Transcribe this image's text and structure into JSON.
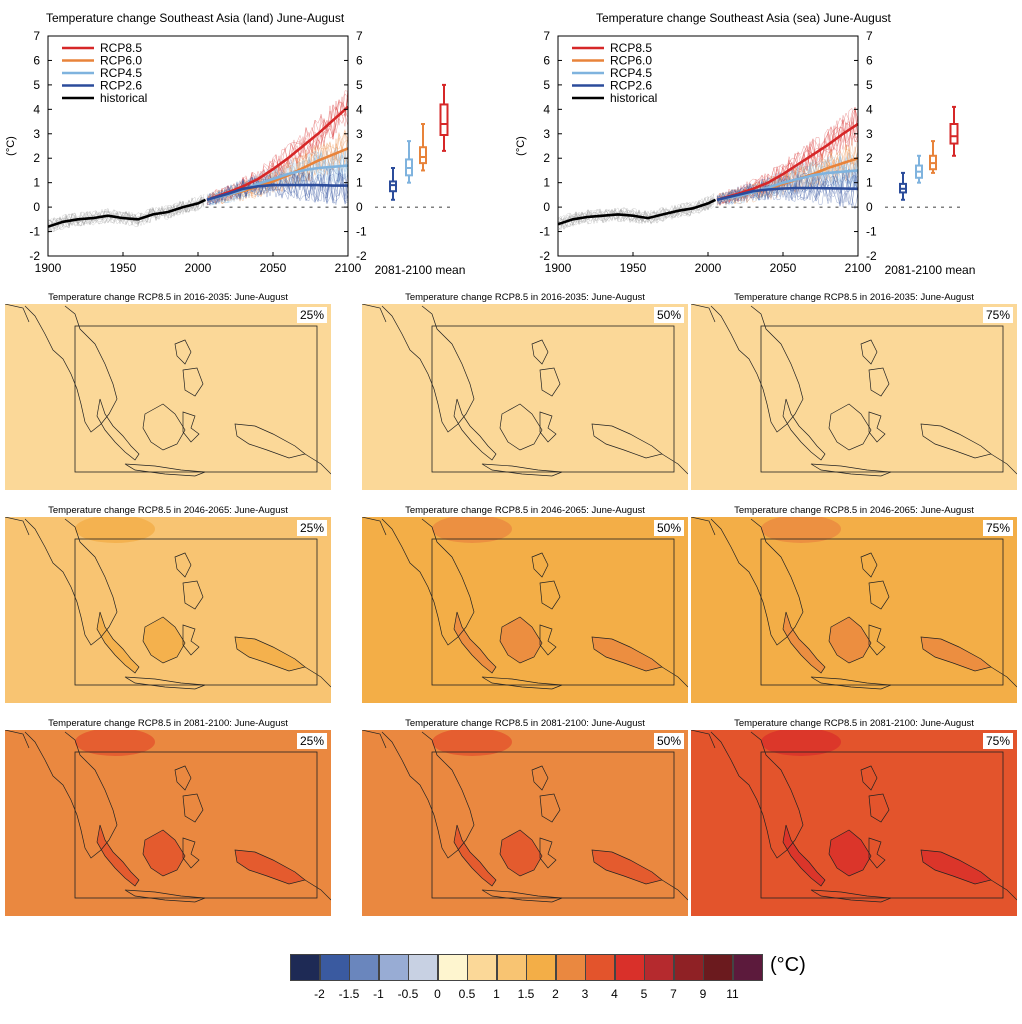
{
  "chart_data": [
    {
      "type": "line",
      "title": "Temperature change Southeast Asia (land) June-August",
      "ylabel": "(°C)",
      "xlim": [
        1900,
        2100
      ],
      "ylim": [
        -2,
        7
      ],
      "x_ticks": [
        1900,
        1950,
        2000,
        2050,
        2100
      ],
      "y_ticks": [
        -2,
        -1,
        0,
        1,
        2,
        3,
        4,
        5,
        6,
        7
      ],
      "legend": "top-left",
      "series": [
        {
          "name": "RCP8.5",
          "color": "#d62728",
          "x": [
            2006,
            2020,
            2030,
            2040,
            2050,
            2060,
            2070,
            2080,
            2090,
            2100
          ],
          "values": [
            0.3,
            0.6,
            0.85,
            1.15,
            1.55,
            2.0,
            2.5,
            3.0,
            3.55,
            4.1
          ]
        },
        {
          "name": "RCP6.0",
          "color": "#e8833a",
          "x": [
            2006,
            2020,
            2030,
            2040,
            2050,
            2060,
            2070,
            2080,
            2090,
            2100
          ],
          "values": [
            0.3,
            0.5,
            0.65,
            0.85,
            1.05,
            1.3,
            1.6,
            1.9,
            2.15,
            2.4
          ]
        },
        {
          "name": "RCP4.5",
          "color": "#7fb3de",
          "x": [
            2006,
            2020,
            2030,
            2040,
            2050,
            2060,
            2070,
            2080,
            2090,
            2100
          ],
          "values": [
            0.3,
            0.5,
            0.7,
            0.95,
            1.15,
            1.35,
            1.5,
            1.6,
            1.65,
            1.7
          ]
        },
        {
          "name": "RCP2.6",
          "color": "#2b4c9b",
          "x": [
            2006,
            2020,
            2030,
            2040,
            2050,
            2060,
            2070,
            2080,
            2090,
            2100
          ],
          "values": [
            0.3,
            0.55,
            0.75,
            0.85,
            0.9,
            0.9,
            0.9,
            0.9,
            0.88,
            0.88
          ]
        },
        {
          "name": "historical",
          "color": "#000000",
          "x": [
            1900,
            1910,
            1920,
            1930,
            1940,
            1950,
            1960,
            1970,
            1980,
            1990,
            2000,
            2005
          ],
          "values": [
            -0.8,
            -0.6,
            -0.5,
            -0.45,
            -0.35,
            -0.45,
            -0.5,
            -0.3,
            -0.2,
            0.0,
            0.15,
            0.3
          ]
        }
      ],
      "box_label": "2081-2100 mean",
      "boxes": [
        {
          "name": "RCP2.6",
          "color": "#2b4c9b",
          "min": 0.3,
          "q1": 0.65,
          "median": 0.9,
          "q3": 1.05,
          "max": 1.6
        },
        {
          "name": "RCP4.5",
          "color": "#7fb3de",
          "min": 1.0,
          "q1": 1.3,
          "median": 1.6,
          "q3": 1.95,
          "max": 2.7
        },
        {
          "name": "RCP6.0",
          "color": "#e8833a",
          "min": 1.5,
          "q1": 1.8,
          "median": 2.05,
          "q3": 2.45,
          "max": 3.4
        },
        {
          "name": "RCP8.5",
          "color": "#d62728",
          "min": 2.3,
          "q1": 2.95,
          "median": 3.4,
          "q3": 4.2,
          "max": 5.0
        }
      ]
    },
    {
      "type": "line",
      "title": "Temperature change Southeast Asia (sea) June-August",
      "ylabel": "(°C)",
      "xlim": [
        1900,
        2100
      ],
      "ylim": [
        -2,
        7
      ],
      "x_ticks": [
        1900,
        1950,
        2000,
        2050,
        2100
      ],
      "y_ticks": [
        -2,
        -1,
        0,
        1,
        2,
        3,
        4,
        5,
        6,
        7
      ],
      "legend": "top-left",
      "series": [
        {
          "name": "RCP8.5",
          "color": "#d62728",
          "x": [
            2006,
            2020,
            2030,
            2040,
            2050,
            2060,
            2070,
            2080,
            2090,
            2100
          ],
          "values": [
            0.3,
            0.55,
            0.75,
            1.0,
            1.35,
            1.75,
            2.15,
            2.55,
            3.0,
            3.4
          ]
        },
        {
          "name": "RCP6.0",
          "color": "#e8833a",
          "x": [
            2006,
            2020,
            2030,
            2040,
            2050,
            2060,
            2070,
            2080,
            2090,
            2100
          ],
          "values": [
            0.3,
            0.45,
            0.6,
            0.75,
            0.95,
            1.15,
            1.35,
            1.6,
            1.8,
            2.0
          ]
        },
        {
          "name": "RCP4.5",
          "color": "#7fb3de",
          "x": [
            2006,
            2020,
            2030,
            2040,
            2050,
            2060,
            2070,
            2080,
            2090,
            2100
          ],
          "values": [
            0.3,
            0.45,
            0.6,
            0.8,
            1.0,
            1.15,
            1.3,
            1.4,
            1.45,
            1.5
          ]
        },
        {
          "name": "RCP2.6",
          "color": "#2b4c9b",
          "x": [
            2006,
            2020,
            2030,
            2040,
            2050,
            2060,
            2070,
            2080,
            2090,
            2100
          ],
          "values": [
            0.3,
            0.5,
            0.65,
            0.72,
            0.76,
            0.78,
            0.78,
            0.77,
            0.76,
            0.75
          ]
        },
        {
          "name": "historical",
          "color": "#000000",
          "x": [
            1900,
            1910,
            1920,
            1930,
            1940,
            1950,
            1960,
            1970,
            1980,
            1990,
            2000,
            2005
          ],
          "values": [
            -0.7,
            -0.5,
            -0.4,
            -0.35,
            -0.3,
            -0.35,
            -0.45,
            -0.3,
            -0.15,
            -0.05,
            0.15,
            0.3
          ]
        }
      ],
      "box_label": "2081-2100 mean",
      "boxes": [
        {
          "name": "RCP2.6",
          "color": "#2b4c9b",
          "min": 0.3,
          "q1": 0.6,
          "median": 0.75,
          "q3": 0.95,
          "max": 1.4
        },
        {
          "name": "RCP4.5",
          "color": "#7fb3de",
          "min": 1.0,
          "q1": 1.2,
          "median": 1.45,
          "q3": 1.7,
          "max": 2.1
        },
        {
          "name": "RCP6.0",
          "color": "#e8833a",
          "min": 1.4,
          "q1": 1.55,
          "median": 1.8,
          "q3": 2.1,
          "max": 2.7
        },
        {
          "name": "RCP8.5",
          "color": "#d62728",
          "min": 2.1,
          "q1": 2.6,
          "median": 2.9,
          "q3": 3.4,
          "max": 4.1
        }
      ]
    },
    {
      "type": "heatmap",
      "maps": [
        {
          "title": "Temperature change RCP8.5 in 2016-2035: June-August",
          "percentile": "25%",
          "fill": "#fbd898"
        },
        {
          "title": "Temperature change RCP8.5 in 2016-2035: June-August",
          "percentile": "50%",
          "fill": "#fbd898"
        },
        {
          "title": "Temperature change RCP8.5 in 2016-2035: June-August",
          "percentile": "75%",
          "fill": "#fbd898"
        },
        {
          "title": "Temperature change RCP8.5 in 2046-2065: June-August",
          "percentile": "25%",
          "fill": "#f8c472"
        },
        {
          "title": "Temperature change RCP8.5 in 2046-2065: June-August",
          "percentile": "50%",
          "fill": "#f3ae47"
        },
        {
          "title": "Temperature change RCP8.5 in 2046-2065: June-August",
          "percentile": "75%",
          "fill": "#f3ae47"
        },
        {
          "title": "Temperature change RCP8.5 in 2081-2100: June-August",
          "percentile": "25%",
          "fill": "#ea8840"
        },
        {
          "title": "Temperature change RCP8.5 in 2081-2100: June-August",
          "percentile": "50%",
          "fill": "#ea8840"
        },
        {
          "title": "Temperature change RCP8.5 in 2081-2100: June-August",
          "percentile": "75%",
          "fill": "#e3542c"
        }
      ]
    }
  ],
  "colorbar": {
    "unit": "(°C)",
    "colors": [
      "#1e2a55",
      "#3a5aa0",
      "#6a86bd",
      "#98acd4",
      "#c8d1e3",
      "#fef5cf",
      "#fbd898",
      "#f8c472",
      "#f3ae47",
      "#ea8840",
      "#e3542c",
      "#d9302a",
      "#b52a2e",
      "#8f2125",
      "#6b1a1e",
      "#5c1a3c"
    ],
    "labels": [
      "-2",
      "-1.5",
      "-1",
      "-0.5",
      "0",
      "0.5",
      "1",
      "1.5",
      "2",
      "3",
      "4",
      "5",
      "7",
      "9",
      "11"
    ]
  }
}
